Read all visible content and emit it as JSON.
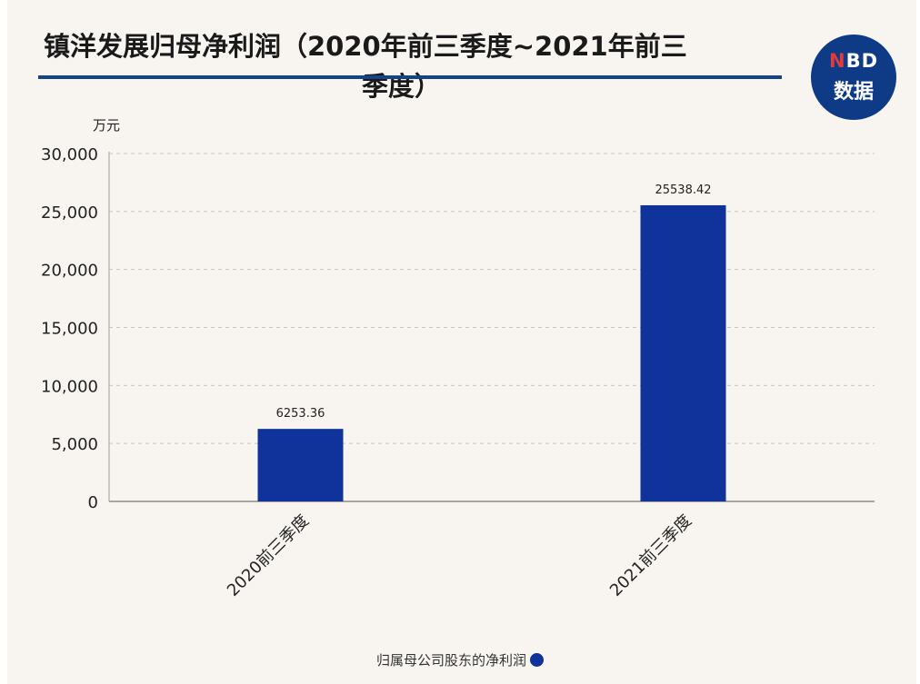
{
  "header": {
    "title_line1": "镇洋发展归母净利润（2020年前三季度~2021年前三",
    "title_line2": "季度）",
    "badge_top": "NBD",
    "badge_bottom": "数据"
  },
  "colors": {
    "bar": "#10339b",
    "title_rule": "#16428a",
    "badge_bg": "#0f3a86",
    "background": "#f8f5f1"
  },
  "chart_data": {
    "type": "bar",
    "title": "镇洋发展归母净利润（2020年前三季度~2021年前三季度）",
    "ylabel": "万元",
    "categories": [
      "2020前三季度",
      "2021前三季度"
    ],
    "series": [
      {
        "name": "归属母公司股东的净利润",
        "values": [
          6253.36,
          25538.42
        ]
      }
    ],
    "data_labels": [
      "6253.36",
      "25538.42"
    ],
    "ylim": [
      0,
      30000
    ],
    "yticks": [
      0,
      5000,
      10000,
      15000,
      20000,
      25000,
      30000
    ],
    "ytick_labels": [
      "0",
      "5,000",
      "10,000",
      "15,000",
      "20,000",
      "25,000",
      "30,000"
    ],
    "grid": true,
    "legend_position": "bottom"
  },
  "legend": {
    "label": "归属母公司股东的净利润"
  }
}
